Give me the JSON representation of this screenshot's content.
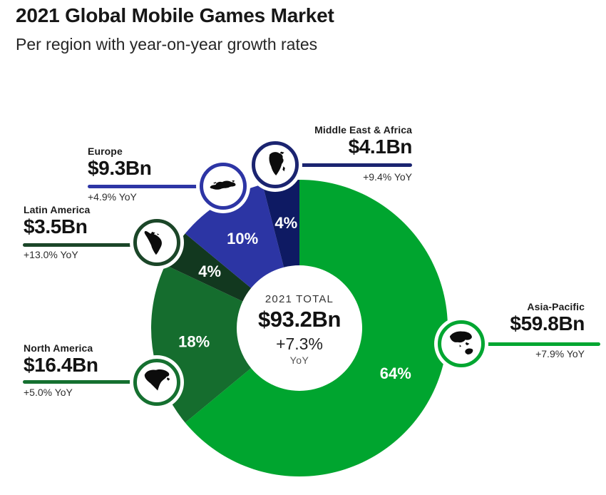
{
  "header": {
    "title": "2021 Global Mobile Games Market",
    "subtitle": "Per region with year-on-year growth rates"
  },
  "chart_data": {
    "type": "pie",
    "variant": "donut",
    "title": "2021 Global Mobile Games Market",
    "subtitle": "Per region with year-on-year growth rates",
    "direction": "clockwise",
    "start_angle_deg": 0,
    "legend_position": "callouts-around-donut",
    "grid": false,
    "center": {
      "label": "2021 TOTAL",
      "value": "$93.2Bn",
      "value_bn_usd": 93.2,
      "growth": "+7.3%",
      "growth_unit": "YoY",
      "yoy_growth_pct": 7.3
    },
    "regions": [
      {
        "id": "asia-pacific",
        "name": "Asia-Pacific",
        "share_pct": 64,
        "percent_label": "64%",
        "value_bn_usd": 59.8,
        "value_label": "$59.8Bn",
        "yoy_growth_pct": 7.9,
        "yoy_label": "+7.9% YoY",
        "color": "#00a52f",
        "accent_color": "#00a631",
        "icon": "asia-pacific-map-icon"
      },
      {
        "id": "north-america",
        "name": "North America",
        "share_pct": 18,
        "percent_label": "18%",
        "value_bn_usd": 16.4,
        "value_label": "$16.4Bn",
        "yoy_growth_pct": 5.0,
        "yoy_label": "+5.0% YoY",
        "color": "#156d2e",
        "accent_color": "#157030",
        "icon": "north-america-map-icon"
      },
      {
        "id": "latin-america",
        "name": "Latin America",
        "share_pct": 4,
        "percent_label": "4%",
        "value_bn_usd": 3.5,
        "value_label": "$3.5Bn",
        "yoy_growth_pct": 13.0,
        "yoy_label": "+13.0% YoY",
        "color": "#12381f",
        "accent_color": "#1b4628",
        "icon": "latin-america-map-icon"
      },
      {
        "id": "europe",
        "name": "Europe",
        "share_pct": 10,
        "percent_label": "10%",
        "value_bn_usd": 9.3,
        "value_label": "$9.3Bn",
        "yoy_growth_pct": 4.9,
        "yoy_label": "+4.9% YoY",
        "color": "#2c35a4",
        "accent_color": "#2d35a5",
        "icon": "europe-map-icon"
      },
      {
        "id": "middle-east-africa",
        "name": "Middle East & Africa",
        "share_pct": 4,
        "percent_label": "4%",
        "value_bn_usd": 4.1,
        "value_label": "$4.1Bn",
        "yoy_growth_pct": 9.4,
        "yoy_label": "+9.4% YoY",
        "color": "#0e1a63",
        "accent_color": "#1b2470",
        "icon": "africa-map-icon"
      }
    ]
  }
}
